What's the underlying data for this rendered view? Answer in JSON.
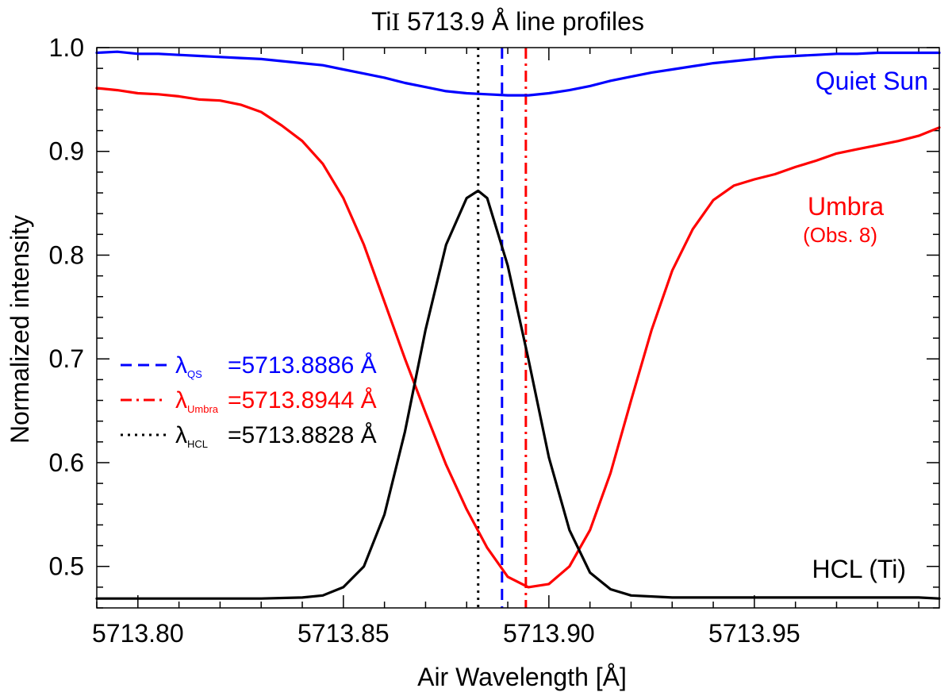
{
  "chart_data": {
    "type": "line",
    "title": "TiI 5713.9 Å line profiles",
    "title_parts": {
      "element": "Ti",
      "ion": "I",
      "rest": " 5713.9 Å line profiles"
    },
    "xlabel": "Air Wavelength [Å]",
    "ylabel": "Normalized intensity",
    "xlim": [
      5713.79,
      5713.995
    ],
    "ylim": [
      0.46,
      1.0
    ],
    "xticks": [
      5713.8,
      5713.85,
      5713.9,
      5713.95
    ],
    "xtick_labels": [
      "5713.80",
      "5713.85",
      "5713.90",
      "5713.95"
    ],
    "yticks": [
      0.5,
      0.6,
      0.7,
      0.8,
      0.9,
      1.0
    ],
    "ytick_labels": [
      "0.5",
      "0.6",
      "0.7",
      "0.8",
      "0.9",
      "1.0"
    ],
    "series": [
      {
        "name": "Quiet Sun",
        "color": "#0000ff",
        "x": [
          5713.79,
          5713.795,
          5713.8,
          5713.805,
          5713.81,
          5713.815,
          5713.82,
          5713.825,
          5713.83,
          5713.835,
          5713.84,
          5713.845,
          5713.85,
          5713.855,
          5713.86,
          5713.865,
          5713.87,
          5713.875,
          5713.88,
          5713.885,
          5713.89,
          5713.895,
          5713.9,
          5713.905,
          5713.91,
          5713.915,
          5713.92,
          5713.925,
          5713.93,
          5713.935,
          5713.94,
          5713.945,
          5713.95,
          5713.955,
          5713.96,
          5713.965,
          5713.97,
          5713.975,
          5713.98,
          5713.985,
          5713.99,
          5713.995
        ],
        "values": [
          0.995,
          0.996,
          0.994,
          0.994,
          0.993,
          0.992,
          0.991,
          0.99,
          0.989,
          0.987,
          0.985,
          0.983,
          0.979,
          0.975,
          0.971,
          0.966,
          0.962,
          0.958,
          0.956,
          0.955,
          0.954,
          0.954,
          0.956,
          0.959,
          0.963,
          0.968,
          0.972,
          0.976,
          0.979,
          0.982,
          0.985,
          0.987,
          0.989,
          0.991,
          0.992,
          0.993,
          0.994,
          0.994,
          0.995,
          0.995,
          0.995,
          0.995
        ]
      },
      {
        "name": "Umbra",
        "label_note": "(Obs. 8)",
        "color": "#ff0000",
        "x": [
          5713.79,
          5713.795,
          5713.8,
          5713.805,
          5713.81,
          5713.815,
          5713.82,
          5713.825,
          5713.83,
          5713.835,
          5713.84,
          5713.845,
          5713.85,
          5713.855,
          5713.86,
          5713.865,
          5713.87,
          5713.875,
          5713.88,
          5713.885,
          5713.89,
          5713.895,
          5713.9,
          5713.905,
          5713.91,
          5713.915,
          5713.92,
          5713.925,
          5713.93,
          5713.935,
          5713.94,
          5713.945,
          5713.95,
          5713.955,
          5713.96,
          5713.965,
          5713.97,
          5713.975,
          5713.98,
          5713.985,
          5713.99,
          5713.995
        ],
        "values": [
          0.961,
          0.959,
          0.956,
          0.955,
          0.953,
          0.95,
          0.949,
          0.945,
          0.938,
          0.925,
          0.91,
          0.888,
          0.855,
          0.81,
          0.755,
          0.7,
          0.648,
          0.598,
          0.555,
          0.518,
          0.49,
          0.48,
          0.483,
          0.5,
          0.535,
          0.59,
          0.66,
          0.728,
          0.785,
          0.825,
          0.853,
          0.867,
          0.873,
          0.878,
          0.885,
          0.891,
          0.898,
          0.902,
          0.906,
          0.91,
          0.915,
          0.923
        ]
      },
      {
        "name": "HCL (Ti)",
        "color": "#000000",
        "x": [
          5713.79,
          5713.8,
          5713.81,
          5713.82,
          5713.83,
          5713.84,
          5713.845,
          5713.85,
          5713.855,
          5713.86,
          5713.865,
          5713.87,
          5713.875,
          5713.88,
          5713.8828,
          5713.885,
          5713.89,
          5713.895,
          5713.9,
          5713.905,
          5713.91,
          5713.915,
          5713.92,
          5713.93,
          5713.94,
          5713.95,
          5713.96,
          5713.97,
          5713.98,
          5713.99,
          5713.995
        ],
        "values": [
          0.469,
          0.469,
          0.469,
          0.469,
          0.469,
          0.47,
          0.472,
          0.48,
          0.5,
          0.55,
          0.63,
          0.728,
          0.81,
          0.855,
          0.862,
          0.855,
          0.79,
          0.7,
          0.605,
          0.535,
          0.494,
          0.478,
          0.472,
          0.47,
          0.47,
          0.47,
          0.47,
          0.47,
          0.47,
          0.47,
          0.469
        ]
      }
    ],
    "reference_lines": [
      {
        "name": "λ_QS",
        "symbol": "λ",
        "subscript": "QS",
        "value": 5713.8886,
        "text": "=5713.8886 Å",
        "style": "dashed",
        "color": "#0000ff"
      },
      {
        "name": "λ_Umbra",
        "symbol": "λ",
        "subscript": "Umbra",
        "value": 5713.8944,
        "text": "=5713.8944 Å",
        "style": "dash-dot",
        "color": "#ff0000"
      },
      {
        "name": "λ_HCL",
        "symbol": "λ",
        "subscript": "HCL",
        "value": 5713.8828,
        "text": "=5713.8828 Å",
        "style": "dotted",
        "color": "#000000"
      }
    ],
    "legend_placement": "middle-left",
    "grid": false
  }
}
